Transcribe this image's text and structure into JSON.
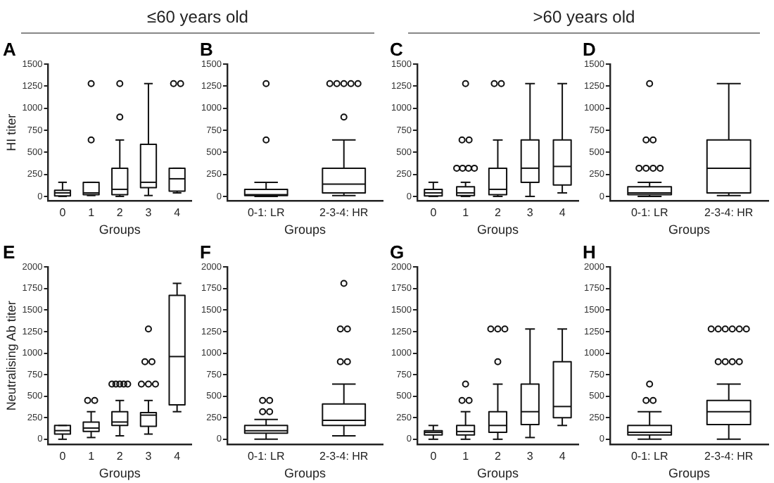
{
  "chart_data": [
    {
      "type": "box",
      "title": "A",
      "ylabel": "HI titer",
      "xlabel": "Groups",
      "annotations": [
        "≤60 years old"
      ],
      "categories": [
        "0",
        "1",
        "2",
        "3",
        "4"
      ],
      "ylim": [
        -50,
        1500
      ],
      "yticks": [
        0,
        250,
        500,
        750,
        1000,
        1250,
        1500
      ],
      "boxes": [
        {
          "low": 0,
          "q1": 5,
          "median": 40,
          "q3": 70,
          "high": 160
        },
        {
          "low": 10,
          "q1": 20,
          "median": 40,
          "q3": 160,
          "high": 160,
          "outliers": [
            640,
            1280
          ]
        },
        {
          "low": 0,
          "q1": 20,
          "median": 80,
          "q3": 320,
          "high": 640,
          "outliers": [
            900,
            1280
          ]
        },
        {
          "low": 10,
          "q1": 100,
          "median": 160,
          "q3": 590,
          "high": 1280
        },
        {
          "low": 40,
          "q1": 60,
          "median": 200,
          "q3": 320,
          "high": 320,
          "outliers": [
            1280,
            1280
          ]
        }
      ]
    },
    {
      "type": "box",
      "title": "B",
      "xlabel": "Groups",
      "categories": [
        "0-1: LR",
        "2-3-4: HR"
      ],
      "ylim": [
        -50,
        1500
      ],
      "yticks": [
        0,
        250,
        500,
        750,
        1000,
        1250,
        1500
      ],
      "boxes": [
        {
          "low": 0,
          "q1": 10,
          "median": 20,
          "q3": 80,
          "high": 160,
          "outliers": [
            640,
            1280
          ]
        },
        {
          "low": 10,
          "q1": 40,
          "median": 140,
          "q3": 320,
          "high": 640,
          "outliers": [
            900,
            1280,
            1280,
            1280,
            1280,
            1280
          ]
        }
      ]
    },
    {
      "type": "box",
      "title": "C",
      "xlabel": "Groups",
      "annotations": [
        ">60 years old"
      ],
      "categories": [
        "0",
        "1",
        "2",
        "3",
        "4"
      ],
      "ylim": [
        -50,
        1500
      ],
      "yticks": [
        0,
        250,
        500,
        750,
        1000,
        1250,
        1500
      ],
      "boxes": [
        {
          "low": 0,
          "q1": 5,
          "median": 40,
          "q3": 80,
          "high": 160
        },
        {
          "low": 0,
          "q1": 10,
          "median": 40,
          "q3": 110,
          "high": 160,
          "outliers": [
            320,
            320,
            320,
            320,
            640,
            640,
            1280
          ]
        },
        {
          "low": 0,
          "q1": 20,
          "median": 80,
          "q3": 320,
          "high": 640,
          "outliers": [
            1280,
            1280
          ]
        },
        {
          "low": 0,
          "q1": 160,
          "median": 320,
          "q3": 640,
          "high": 1280
        },
        {
          "low": 40,
          "q1": 130,
          "median": 340,
          "q3": 640,
          "high": 1280
        }
      ]
    },
    {
      "type": "box",
      "title": "D",
      "xlabel": "Groups",
      "categories": [
        "0-1: LR",
        "2-3-4: HR"
      ],
      "ylim": [
        -50,
        1500
      ],
      "yticks": [
        0,
        250,
        500,
        750,
        1000,
        1250,
        1500
      ],
      "boxes": [
        {
          "low": 0,
          "q1": 20,
          "median": 40,
          "q3": 110,
          "high": 160,
          "outliers": [
            320,
            320,
            320,
            320,
            640,
            640,
            1280
          ]
        },
        {
          "low": 10,
          "q1": 40,
          "median": 320,
          "q3": 640,
          "high": 1280
        }
      ]
    },
    {
      "type": "box",
      "title": "E",
      "ylabel": "Neutralising Ab titer",
      "xlabel": "Groups",
      "categories": [
        "0",
        "1",
        "2",
        "3",
        "4"
      ],
      "ylim": [
        -60,
        2000
      ],
      "yticks": [
        0,
        250,
        500,
        750,
        1000,
        1250,
        1500,
        1750,
        2000
      ],
      "boxes": [
        {
          "low": 0,
          "q1": 60,
          "median": 100,
          "q3": 160,
          "high": 160
        },
        {
          "low": 20,
          "q1": 90,
          "median": 130,
          "q3": 200,
          "high": 320,
          "outliers": [
            450,
            450
          ]
        },
        {
          "low": 40,
          "q1": 160,
          "median": 200,
          "q3": 320,
          "high": 450,
          "outliers": [
            640,
            640,
            640,
            640,
            640
          ]
        },
        {
          "low": 60,
          "q1": 150,
          "median": 280,
          "q3": 310,
          "high": 450,
          "outliers": [
            640,
            640,
            640,
            900,
            900,
            1280
          ]
        },
        {
          "low": 320,
          "q1": 400,
          "median": 960,
          "q3": 1670,
          "high": 1810
        }
      ]
    },
    {
      "type": "box",
      "title": "F",
      "xlabel": "Groups",
      "categories": [
        "0-1: LR",
        "2-3-4: HR"
      ],
      "ylim": [
        -60,
        2000
      ],
      "yticks": [
        0,
        250,
        500,
        750,
        1000,
        1250,
        1500,
        1750,
        2000
      ],
      "boxes": [
        {
          "low": 0,
          "q1": 70,
          "median": 100,
          "q3": 160,
          "high": 230,
          "outliers": [
            320,
            320,
            450,
            450
          ]
        },
        {
          "low": 40,
          "q1": 160,
          "median": 220,
          "q3": 410,
          "high": 640,
          "outliers": [
            900,
            900,
            1280,
            1280,
            1810
          ]
        }
      ]
    },
    {
      "type": "box",
      "title": "G",
      "xlabel": "Groups",
      "categories": [
        "0",
        "1",
        "2",
        "3",
        "4"
      ],
      "ylim": [
        -60,
        2000
      ],
      "yticks": [
        0,
        250,
        500,
        750,
        1000,
        1250,
        1500,
        1750,
        2000
      ],
      "boxes": [
        {
          "low": 0,
          "q1": 50,
          "median": 80,
          "q3": 100,
          "high": 160
        },
        {
          "low": 0,
          "q1": 50,
          "median": 90,
          "q3": 160,
          "high": 320,
          "outliers": [
            450,
            450,
            640
          ]
        },
        {
          "low": 0,
          "q1": 80,
          "median": 160,
          "q3": 320,
          "high": 640,
          "outliers": [
            900,
            1280,
            1280,
            1280
          ]
        },
        {
          "low": 20,
          "q1": 170,
          "median": 320,
          "q3": 640,
          "high": 1280
        },
        {
          "low": 160,
          "q1": 250,
          "median": 380,
          "q3": 900,
          "high": 1280
        }
      ]
    },
    {
      "type": "box",
      "title": "H",
      "xlabel": "Groups",
      "categories": [
        "0-1: LR",
        "2-3-4: HR"
      ],
      "ylim": [
        -60,
        2000
      ],
      "yticks": [
        0,
        250,
        500,
        750,
        1000,
        1250,
        1500,
        1750,
        2000
      ],
      "boxes": [
        {
          "low": 0,
          "q1": 50,
          "median": 80,
          "q3": 160,
          "high": 320,
          "outliers": [
            450,
            450,
            640
          ]
        },
        {
          "low": 0,
          "q1": 170,
          "median": 320,
          "q3": 450,
          "high": 640,
          "outliers": [
            900,
            900,
            900,
            900,
            1280,
            1280,
            1280,
            1280,
            1280,
            1280
          ]
        }
      ]
    }
  ]
}
